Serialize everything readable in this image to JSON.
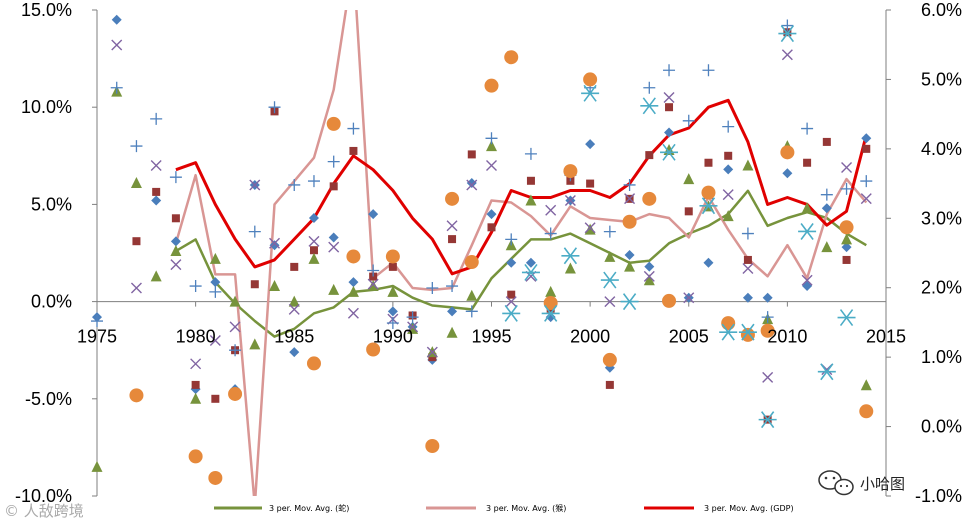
{
  "chart_data": {
    "type": "scatter",
    "title": "",
    "xlabel": "",
    "ylabel": "",
    "xlim": [
      1975,
      2015
    ],
    "ylim": [
      -10,
      15
    ],
    "y2lim": [
      -1,
      6
    ],
    "x_ticks": [
      "1975",
      "1980",
      "1985",
      "1990",
      "1995",
      "2000",
      "2005",
      "2010",
      "2015"
    ],
    "y_ticks": [
      "-10.0%",
      "-5.0%",
      "0.0%",
      "5.0%",
      "10.0%",
      "15.0%"
    ],
    "y2_ticks": [
      "-1.0%",
      "0.0%",
      "1.0%",
      "2.0%",
      "3.0%",
      "4.0%",
      "5.0%",
      "6.0%"
    ],
    "grid": false,
    "legend_position": "bottom",
    "lines": [
      {
        "name": "3 per. Mov. Avg. (蛇)",
        "color": "#77933c",
        "axis": "left",
        "x": [
          1979,
          1980,
          1981,
          1982,
          1983,
          1984,
          1985,
          1986,
          1987,
          1988,
          1989,
          1990,
          1991,
          1992,
          1993,
          1994,
          1995,
          1996,
          1997,
          1998,
          1999,
          2000,
          2001,
          2002,
          2003,
          2004,
          2005,
          2006,
          2007,
          2008,
          2009,
          2010,
          2011,
          2012,
          2013,
          2014
        ],
        "y": [
          2.6,
          3.2,
          1.0,
          -0.1,
          -1.0,
          -1.8,
          -1.4,
          -0.6,
          -0.3,
          0.5,
          0.6,
          0.8,
          0.2,
          -0.2,
          -0.3,
          -0.4,
          1.2,
          2.2,
          3.2,
          3.2,
          3.5,
          3.0,
          2.5,
          2.0,
          2.1,
          3.0,
          3.5,
          3.9,
          4.5,
          5.7,
          3.9,
          4.3,
          4.6,
          4.3,
          3.5,
          2.9
        ]
      },
      {
        "name": "3 per. Mov. Avg. (猴)",
        "color": "#d99694",
        "axis": "left",
        "x": [
          1979,
          1980,
          1981,
          1982,
          1983,
          1984,
          1985,
          1986,
          1987,
          1988,
          1989,
          1990,
          1991,
          1992,
          1993,
          1994,
          1995,
          1996,
          1997,
          1998,
          1999,
          2000,
          2001,
          2002,
          2003,
          2004,
          2005,
          2006,
          2007,
          2008,
          2009,
          2010,
          2011,
          2012,
          2013,
          2014
        ],
        "y": [
          3.0,
          6.5,
          1.4,
          1.4,
          -10.5,
          5.0,
          6.2,
          7.4,
          10.9,
          17.5,
          1.2,
          2.0,
          0.7,
          0.6,
          0.7,
          2.9,
          5.2,
          5.1,
          4.4,
          3.4,
          4.9,
          4.3,
          4.2,
          4.1,
          4.5,
          4.3,
          3.3,
          5.4,
          3.7,
          2.2,
          1.3,
          2.9,
          1.2,
          4.5,
          6.3,
          5.1
        ]
      },
      {
        "name": "3 per. Mov. Avg. (GDP)",
        "color": "#e00000",
        "axis": "right",
        "x": [
          1979,
          1980,
          1981,
          1982,
          1983,
          1984,
          1985,
          1986,
          1987,
          1988,
          1989,
          1990,
          1991,
          1992,
          1993,
          1994,
          1995,
          1996,
          1997,
          1998,
          1999,
          2000,
          2001,
          2002,
          2003,
          2004,
          2005,
          2006,
          2007,
          2008,
          2009,
          2010,
          2011,
          2012,
          2013,
          2014
        ],
        "y": [
          3.7,
          3.8,
          3.2,
          2.7,
          2.3,
          2.4,
          2.7,
          3.0,
          3.5,
          3.9,
          3.7,
          3.4,
          3.0,
          2.7,
          2.2,
          2.3,
          2.8,
          3.4,
          3.3,
          3.3,
          3.4,
          3.4,
          3.3,
          3.5,
          3.9,
          4.2,
          4.3,
          4.6,
          4.7,
          4.1,
          3.2,
          3.3,
          3.2,
          2.9,
          3.1,
          4.2
        ]
      }
    ],
    "scatter": [
      {
        "marker": "diamond",
        "color": "#4a7ebb",
        "axis": "left",
        "x": [
          1975,
          1976,
          1978,
          1979,
          1980,
          1981,
          1982,
          1983,
          1984,
          1985,
          1986,
          1987,
          1988,
          1989,
          1990,
          1991,
          1992,
          1993,
          1994,
          1995,
          1996,
          1997,
          1998,
          1999,
          2000,
          2001,
          2002,
          2003,
          2004,
          2005,
          2006,
          2007,
          2008,
          2009,
          2010,
          2011,
          2012,
          2013,
          2014
        ],
        "y": [
          -0.8,
          14.5,
          5.2,
          3.1,
          -4.5,
          1.0,
          -4.5,
          6.0,
          2.9,
          -2.6,
          4.3,
          3.3,
          1.0,
          4.5,
          -0.5,
          -1.3,
          -3.0,
          -0.5,
          6.1,
          4.5,
          2.0,
          2.0,
          -0.8,
          5.2,
          8.1,
          -3.4,
          2.4,
          1.8,
          8.7,
          0.2,
          2.0,
          6.8,
          0.2,
          0.2,
          6.6,
          0.8,
          4.8,
          2.8,
          8.4
        ]
      },
      {
        "marker": "square",
        "color": "#953735",
        "axis": "right",
        "x": [
          1977,
          1978,
          1979,
          1980,
          1981,
          1982,
          1983,
          1984,
          1985,
          1986,
          1987,
          1988,
          1989,
          1990,
          1991,
          1992,
          1993,
          1994,
          1995,
          1996,
          1997,
          1998,
          1999,
          2000,
          2001,
          2002,
          2003,
          2004,
          2005,
          2006,
          2007,
          2008,
          2009,
          2010,
          2011,
          2012,
          2013,
          2014
        ],
        "y": [
          2.67,
          3.38,
          3.0,
          0.6,
          0.4,
          1.1,
          2.05,
          4.54,
          2.3,
          2.54,
          3.46,
          3.97,
          2.16,
          2.3,
          1.6,
          1.0,
          2.7,
          3.92,
          2.87,
          1.9,
          3.54,
          1.7,
          3.54,
          3.5,
          0.6,
          3.28,
          3.91,
          4.6,
          3.1,
          3.8,
          3.9,
          2.4,
          0.1,
          5.68,
          3.8,
          4.1,
          2.4,
          4.0
        ]
      },
      {
        "marker": "triangle",
        "color": "#77933c",
        "axis": "left",
        "x": [
          1975,
          1976,
          1977,
          1978,
          1979,
          1980,
          1981,
          1982,
          1983,
          1984,
          1985,
          1986,
          1987,
          1988,
          1989,
          1990,
          1991,
          1992,
          1993,
          1994,
          1995,
          1996,
          1997,
          1998,
          1999,
          2000,
          2001,
          2002,
          2003,
          2004,
          2005,
          2006,
          2007,
          2008,
          2009,
          2010,
          2011,
          2012,
          2013,
          2014
        ],
        "y": [
          -8.5,
          10.8,
          6.1,
          1.3,
          2.6,
          -5.0,
          2.2,
          0.0,
          -2.2,
          0.8,
          0.0,
          2.2,
          0.6,
          0.5,
          0.8,
          0.5,
          -1.4,
          -2.6,
          -1.6,
          0.3,
          8.0,
          2.9,
          5.2,
          0.5,
          1.7,
          3.7,
          2.3,
          1.8,
          1.1,
          7.8,
          6.3,
          4.9,
          4.4,
          7.0,
          -0.9,
          8.0,
          4.8,
          2.8,
          3.2,
          -4.3
        ]
      },
      {
        "marker": "x",
        "color": "#8064a2",
        "axis": "left",
        "x": [
          1976,
          1977,
          1978,
          1979,
          1980,
          1981,
          1982,
          1983,
          1984,
          1985,
          1986,
          1987,
          1988,
          1989,
          1990,
          1991,
          1992,
          1993,
          1994,
          1995,
          1996,
          1997,
          1998,
          1999,
          2000,
          2001,
          2002,
          2003,
          2004,
          2005,
          2006,
          2007,
          2008,
          2009,
          2010,
          2011,
          2012,
          2013,
          2014
        ],
        "y": [
          13.2,
          0.7,
          7.0,
          1.9,
          -3.2,
          -2.0,
          -1.3,
          6.0,
          3.0,
          -0.4,
          3.1,
          2.8,
          -0.6,
          0.9,
          -0.9,
          -1.3,
          -2.6,
          3.9,
          6.0,
          7.0,
          0.0,
          1.3,
          4.7,
          5.2,
          3.8,
          0.0,
          5.3,
          1.3,
          10.5,
          0.2,
          5.5,
          5.5,
          1.7,
          -3.9,
          12.7,
          1.1,
          -3.5,
          6.9,
          5.3
        ]
      },
      {
        "marker": "plus",
        "color": "#4f81bd",
        "axis": "left",
        "x": [
          1975,
          1976,
          1977,
          1978,
          1979,
          1980,
          1981,
          1982,
          1983,
          1984,
          1985,
          1986,
          1987,
          1988,
          1989,
          1990,
          1991,
          1992,
          1993,
          1994,
          1995,
          1996,
          1997,
          1998,
          1999,
          2000,
          2001,
          2002,
          2003,
          2004,
          2005,
          2006,
          2007,
          2008,
          2009,
          2010,
          2011,
          2012,
          2013,
          2014
        ],
        "y": [
          -1.0,
          11.0,
          8.0,
          9.4,
          6.4,
          0.8,
          0.5,
          -2.5,
          3.6,
          10.0,
          6.0,
          6.2,
          7.2,
          8.9,
          1.6,
          -1.1,
          -0.8,
          0.7,
          0.8,
          -0.5,
          8.4,
          3.2,
          7.6,
          3.5,
          6.5,
          11.0,
          3.6,
          6.0,
          11.0,
          11.9,
          9.3,
          11.9,
          9.0,
          3.5,
          -0.8,
          14.2,
          8.9,
          5.5,
          5.8,
          6.2
        ]
      },
      {
        "marker": "circle",
        "color": "#e6893b",
        "axis": "right",
        "x": [
          1977,
          1980,
          1981,
          1982,
          1986,
          1987,
          1988,
          1989,
          1990,
          1992,
          1993,
          1994,
          1995,
          1996,
          1998,
          1999,
          2000,
          2001,
          2002,
          2003,
          2004,
          2006,
          2007,
          2008,
          2009,
          2010,
          2013,
          2014
        ],
        "y": [
          0.45,
          -0.43,
          -0.74,
          0.47,
          0.91,
          4.36,
          2.45,
          1.11,
          2.45,
          -0.28,
          3.28,
          2.37,
          4.91,
          5.32,
          1.78,
          3.68,
          5.0,
          0.96,
          2.95,
          3.28,
          1.81,
          3.37,
          1.49,
          1.32,
          1.38,
          3.95,
          2.87,
          0.22
        ]
      },
      {
        "marker": "asterisk",
        "color": "#4bacc6",
        "axis": "right",
        "x": [
          1996,
          1997,
          1998,
          1999,
          2000,
          2001,
          2002,
          2003,
          2004,
          2006,
          2007,
          2008,
          2009,
          2010,
          2011,
          2012,
          2013
        ],
        "y": [
          1.63,
          2.22,
          1.63,
          2.46,
          4.8,
          2.11,
          1.8,
          4.62,
          3.95,
          3.18,
          1.36,
          1.36,
          0.1,
          5.66,
          2.81,
          0.79,
          1.57
        ]
      }
    ]
  },
  "legend": [
    {
      "label": "3 per. Mov. Avg. (蛇)",
      "color": "#77933c"
    },
    {
      "label": "3 per. Mov. Avg. (猴)",
      "color": "#d99694"
    },
    {
      "label": "3 per. Mov. Avg. (GDP)",
      "color": "#e00000"
    }
  ],
  "watermark": {
    "left_text": "© 人敌跨境",
    "right_text": "小哈图"
  }
}
